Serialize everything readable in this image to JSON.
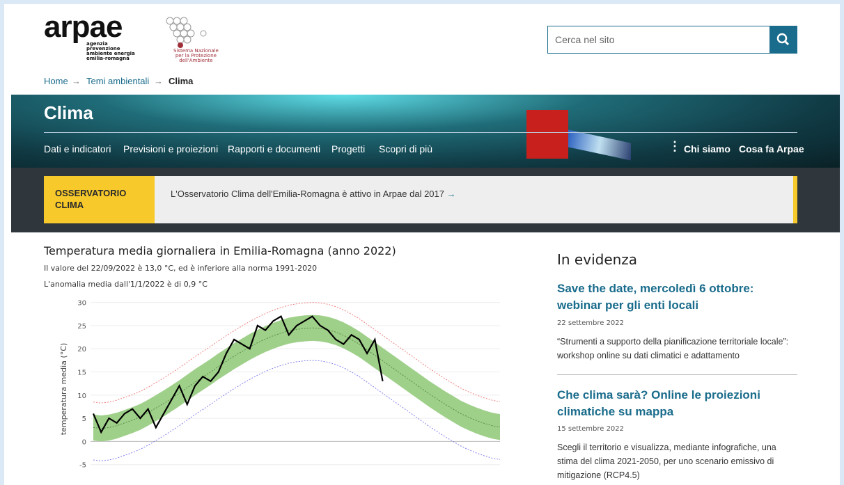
{
  "header": {
    "logo": "arpae",
    "logo_lines": [
      "agenzia",
      "prevenzione",
      "ambiente energia",
      "emilia-romagna"
    ],
    "snpa_lines": [
      "Sistema Nazionale",
      "per la Protezione",
      "dell'Ambiente"
    ],
    "search_placeholder": "Cerca nel sito"
  },
  "breadcrumb": [
    "Home",
    "Temi ambientali",
    "Clima"
  ],
  "hero": {
    "title": "Clima",
    "nav": [
      "Dati e indicatori",
      "Previsioni e proiezioni",
      "Rapporti e documenti",
      "Progetti",
      "Scopri di più"
    ],
    "nav_right": [
      "Chi siamo",
      "Cosa fa Arpae"
    ]
  },
  "banner": {
    "label": "OSSERVATORIO CLIMA",
    "text": "L'Osservatorio Clima dell'Emilia-Romagna è attivo in Arpae dal 2017"
  },
  "chart_data": {
    "type": "line",
    "title": "Temperatura media giornaliera in Emilia-Romagna (anno 2022)",
    "subtitle": [
      "Il valore del 22/09/2022 è 13,0 °C, ed è inferiore alla norma 1991-2020",
      "L'anomalia media dall'1/1/2022 è di 0,9 °C"
    ],
    "y_label": "temperatura media (°C)",
    "x": [
      1,
      8,
      15,
      22,
      29,
      36,
      43,
      50,
      57,
      64,
      71,
      78,
      85,
      92,
      99,
      106,
      113,
      120,
      127,
      134,
      141,
      148,
      155,
      162,
      169,
      176,
      183,
      190,
      197,
      204,
      211,
      218,
      225,
      232,
      239,
      246,
      253,
      260,
      267,
      274,
      281,
      288,
      295,
      302,
      309,
      316,
      323,
      330,
      337,
      344,
      351,
      358,
      365
    ],
    "xlim": [
      1,
      365
    ],
    "ylim": [
      -8.5,
      31
    ],
    "yticks": [
      -5,
      0,
      5,
      10,
      15,
      20,
      25,
      30
    ],
    "grid": true,
    "band": {
      "color": "#9fd08a",
      "upper": [
        5.8,
        5.6,
        5.8,
        6.2,
        6.8,
        7.4,
        8.1,
        9,
        10,
        11,
        12.1,
        13.2,
        14.4,
        15.6,
        16.7,
        17.8,
        19,
        20.1,
        21.2,
        22.2,
        23.2,
        24.1,
        24.9,
        25.6,
        26.2,
        26.7,
        27,
        27.2,
        27.3,
        27.2,
        26.9,
        26.4,
        25.7,
        24.8,
        23.8,
        22.6,
        21.4,
        20.2,
        19,
        17.8,
        16.6,
        15.4,
        14.2,
        13,
        11.9,
        10.8,
        9.8,
        8.8,
        8,
        7.3,
        6.7,
        6.2,
        5.9
      ],
      "lower": [
        0.2,
        0,
        0.2,
        0.6,
        1.2,
        1.8,
        2.5,
        3.4,
        4.4,
        5.4,
        6.5,
        7.6,
        8.8,
        10,
        11.1,
        12.2,
        13.4,
        14.5,
        15.6,
        16.6,
        17.6,
        18.5,
        19.3,
        20,
        20.6,
        21.1,
        21.4,
        21.6,
        21.7,
        21.6,
        21.3,
        20.8,
        20.1,
        19.2,
        18.2,
        17,
        15.8,
        14.6,
        13.4,
        12.2,
        11,
        9.8,
        8.6,
        7.4,
        6.3,
        5.2,
        4.2,
        3.2,
        2.4,
        1.7,
        1.1,
        0.6,
        0.3
      ]
    },
    "series": [
      {
        "color": "#f08080",
        "dash": true,
        "values": [
          8.5,
          8.3,
          8.5,
          8.9,
          9.5,
          10.1,
          10.8,
          11.7,
          12.7,
          13.7,
          14.8,
          15.9,
          17.1,
          18.3,
          19.4,
          20.5,
          21.7,
          22.8,
          23.9,
          24.9,
          25.9,
          26.8,
          27.6,
          28.3,
          28.9,
          29.4,
          29.7,
          29.9,
          30,
          29.9,
          29.6,
          29.1,
          28.4,
          27.5,
          26.5,
          25.3,
          24.1,
          22.9,
          21.7,
          20.5,
          19.3,
          18.1,
          16.9,
          15.7,
          14.6,
          13.5,
          12.5,
          11.5,
          10.7,
          10,
          9.4,
          8.9,
          8.6
        ]
      },
      {
        "color": "#8080f0",
        "dash": true,
        "values": [
          -4,
          -4.2,
          -4,
          -3.6,
          -3,
          -2.4,
          -1.7,
          -0.8,
          0.2,
          1.2,
          2.3,
          3.4,
          4.6,
          5.8,
          6.9,
          8,
          9.2,
          10.3,
          11.4,
          12.4,
          13.4,
          14.3,
          15.1,
          15.8,
          16.4,
          16.9,
          17.2,
          17.4,
          17.5,
          17.4,
          17.1,
          16.6,
          15.9,
          15,
          14,
          12.8,
          11.6,
          10.4,
          9.2,
          8,
          6.8,
          5.6,
          4.4,
          3.2,
          2.1,
          1,
          0,
          -1,
          -1.8,
          -2.5,
          -3.1,
          -3.6,
          -3.9
        ]
      },
      {
        "color": "#5a8a4a",
        "dash": true,
        "values": [
          3,
          2.8,
          3,
          3.4,
          4,
          4.6,
          5.3,
          6.2,
          7.2,
          8.2,
          9.3,
          10.4,
          11.6,
          12.8,
          13.9,
          15,
          16.2,
          17.3,
          18.4,
          19.4,
          20.4,
          21.3,
          22.1,
          22.8,
          23.4,
          23.9,
          24.2,
          24.4,
          24.5,
          24.4,
          24.1,
          23.6,
          22.9,
          22,
          21,
          19.8,
          18.6,
          17.4,
          16.2,
          15,
          13.8,
          12.6,
          11.4,
          10.2,
          9.1,
          8,
          7,
          6,
          5.2,
          4.5,
          3.9,
          3.4,
          3.1
        ]
      },
      {
        "color": "#000000",
        "dash": false,
        "values": [
          6,
          2,
          5,
          4,
          6,
          7,
          5,
          7,
          3,
          6,
          9,
          12,
          8,
          12,
          14,
          13,
          15,
          19,
          22,
          21,
          20,
          25,
          24,
          26,
          27,
          23,
          25,
          26,
          27,
          25,
          24,
          22,
          21,
          23,
          22,
          19,
          22,
          13,
          null,
          null,
          null,
          null,
          null,
          null,
          null,
          null,
          null,
          null,
          null,
          null,
          null,
          null,
          null
        ]
      }
    ]
  },
  "sidebar": {
    "heading": "In evidenza",
    "items": [
      {
        "title": "Save the date, mercoledì 6 ottobre: webinar per gli enti locali",
        "date": "22 settembre 2022",
        "text": "“Strumenti a supporto della pianificazione territoriale locale”: workshop online su dati climatici e adattamento"
      },
      {
        "title": "Che clima sarà? Online le proiezioni climatiche su mappa",
        "date": "15 settembre 2022",
        "text": "Scegli il territorio e visualizza, mediante infografiche, una stima del clima 2021-2050, per uno scenario emissivo di mitigazione (RCP4.5)"
      }
    ]
  }
}
